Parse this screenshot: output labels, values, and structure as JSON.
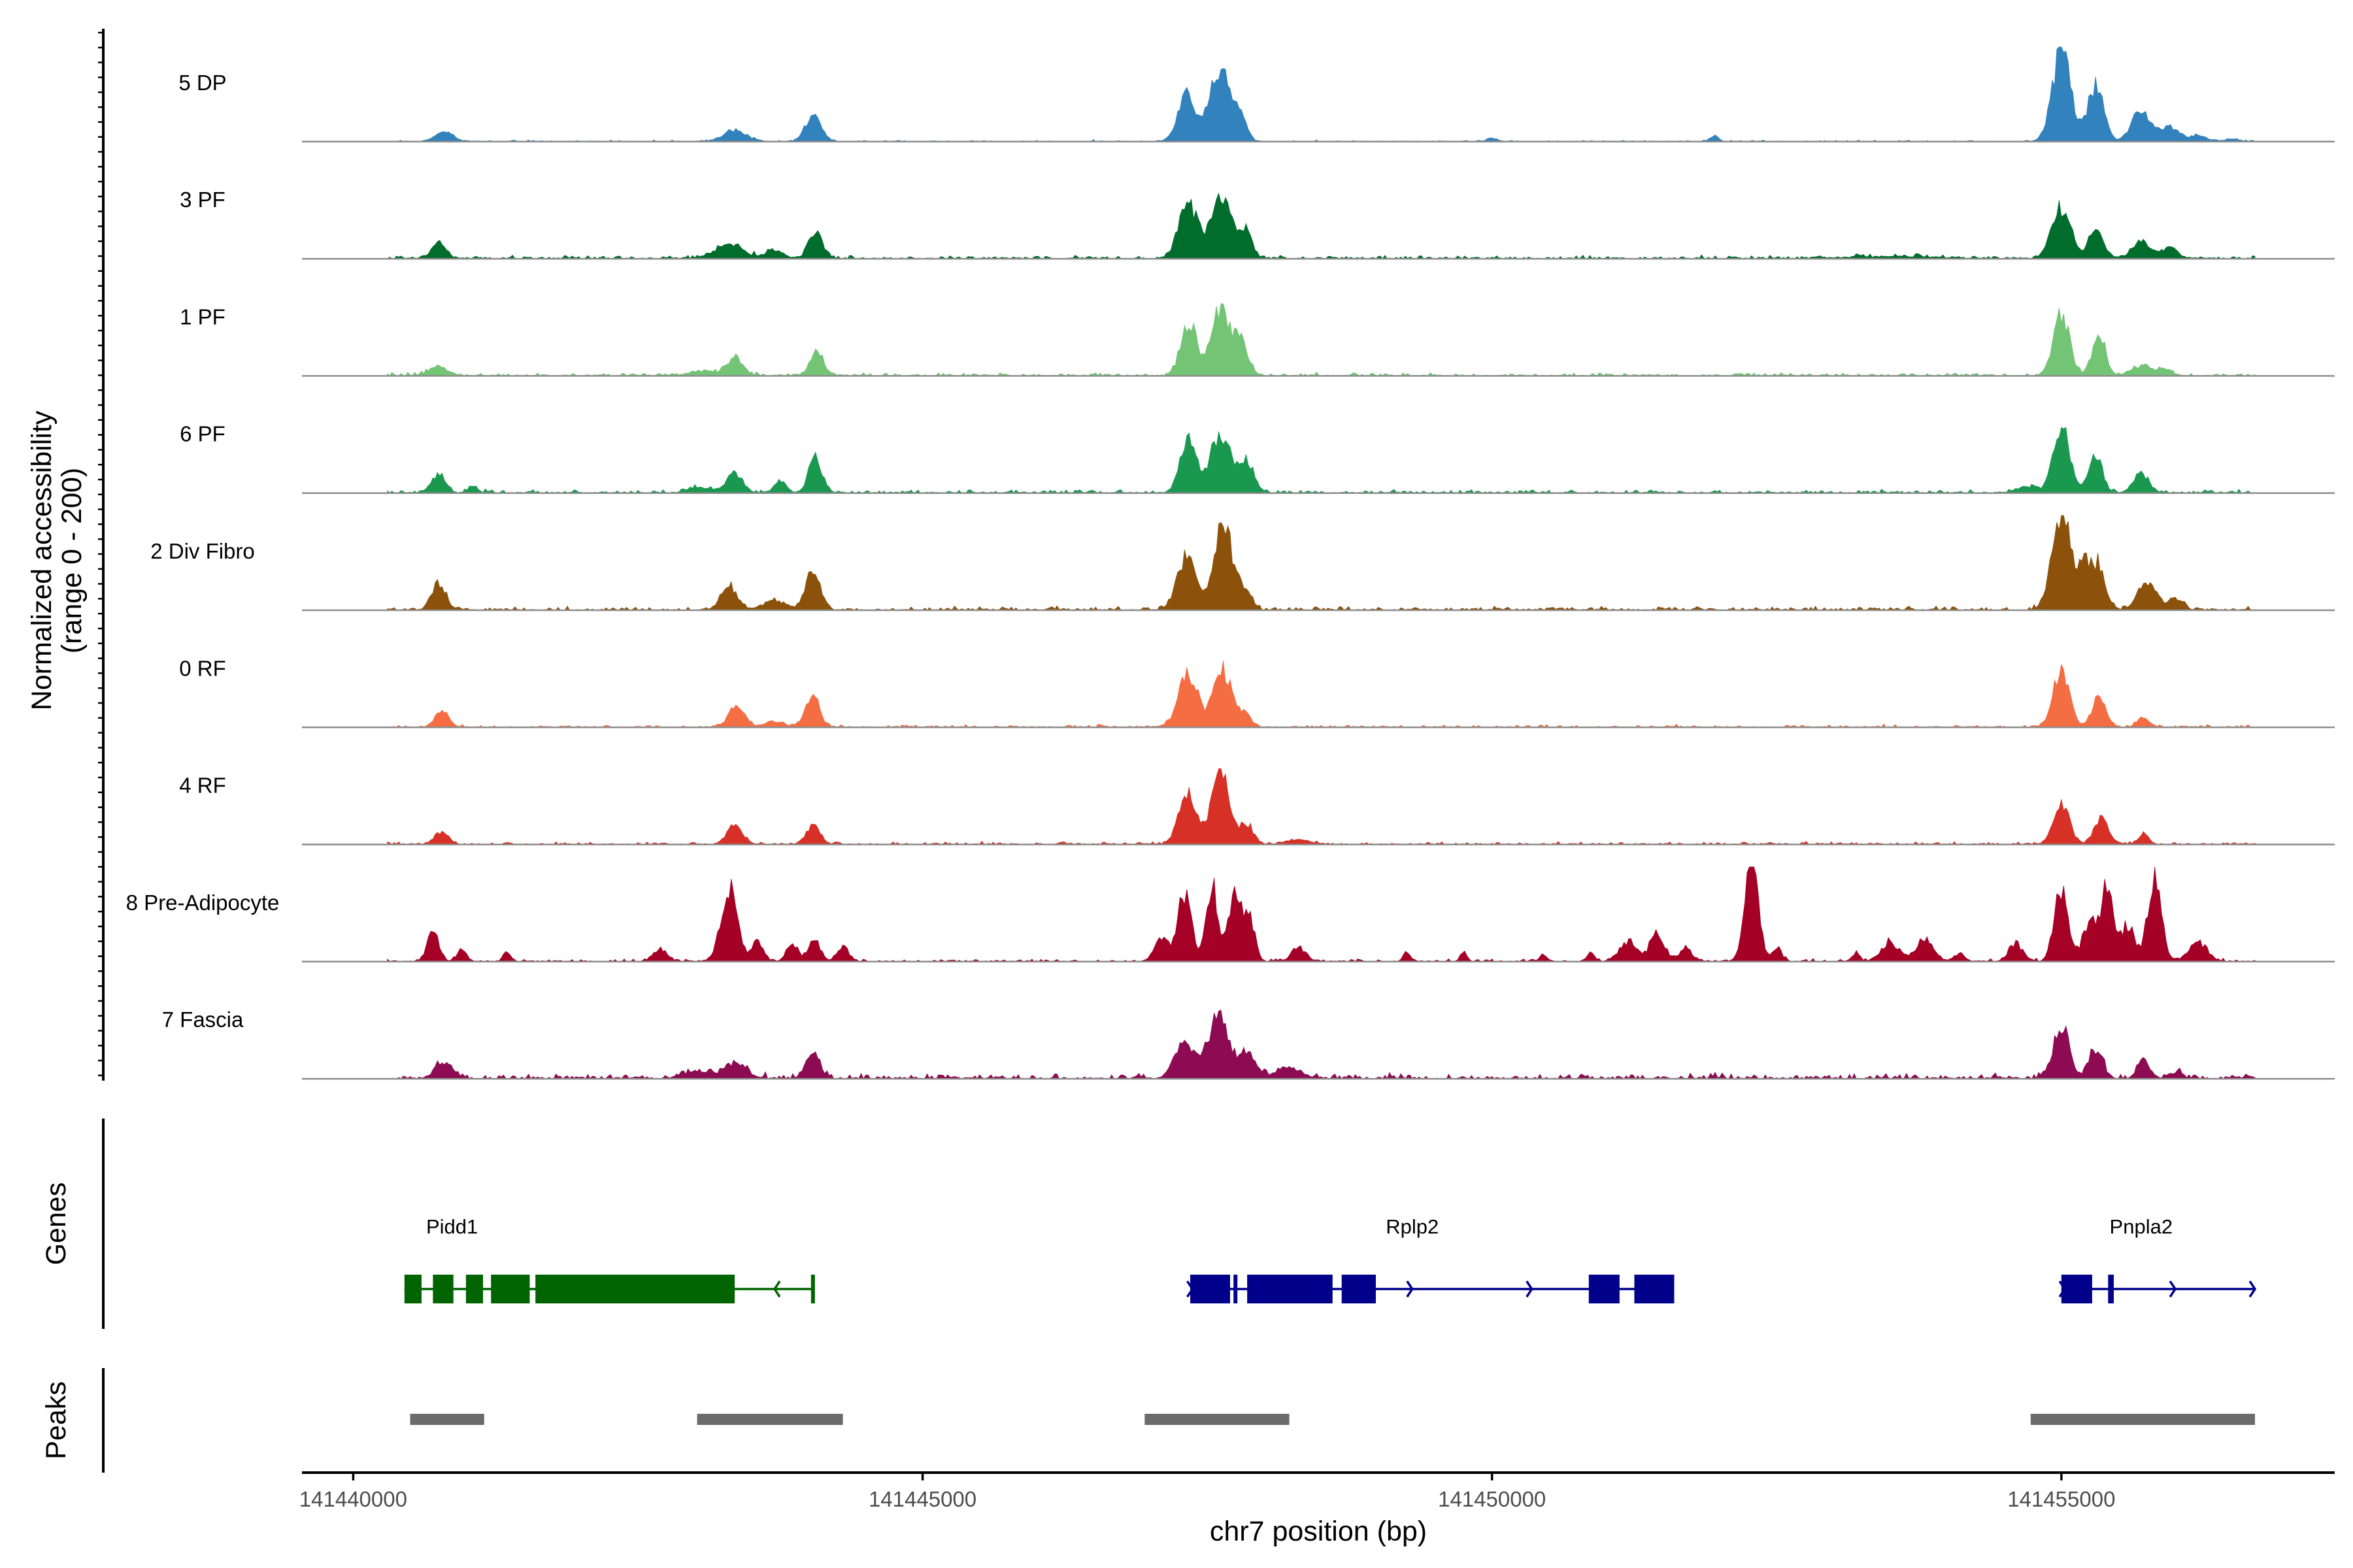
{
  "chart_data": {
    "type": "area",
    "title": "",
    "xlabel": "chr7 position (bp)",
    "ylabel_lines": [
      "Normalized accessibility",
      "(range 0 - 200)"
    ],
    "ylim": [
      0,
      200
    ],
    "xlim": [
      141439550,
      141457400
    ],
    "x_ticks": [
      {
        "value": 141440000,
        "label": "141440000"
      },
      {
        "value": 141445000,
        "label": "141445000"
      },
      {
        "value": 141450000,
        "label": "141450000"
      },
      {
        "value": 141455000,
        "label": "141455000"
      }
    ],
    "panels": {
      "genes": "Genes",
      "peaks": "Peaks"
    },
    "series": [
      {
        "name": "5 DP",
        "color": "#3182bd",
        "peaks": [
          [
            141440800,
            0.1,
            80
          ],
          [
            141443350,
            0.12,
            100
          ],
          [
            141444040,
            0.26,
            70
          ],
          [
            141447320,
            0.48,
            80
          ],
          [
            141447610,
            0.74,
            90
          ],
          [
            141447780,
            0.28,
            60
          ],
          [
            141455000,
            0.95,
            80
          ],
          [
            141455300,
            0.58,
            70
          ],
          [
            141455700,
            0.35,
            80
          ],
          [
            141455950,
            0.15,
            80
          ],
          [
            141450000,
            0.03,
            50
          ],
          [
            141451950,
            0.06,
            40
          ],
          [
            141456200,
            0.06,
            80
          ],
          [
            141456500,
            0.03,
            60
          ]
        ]
      },
      {
        "name": "3 PF",
        "color": "#006d2c",
        "peaks": [
          [
            141440750,
            0.17,
            60
          ],
          [
            141443300,
            0.15,
            120
          ],
          [
            141443700,
            0.08,
            80
          ],
          [
            141444060,
            0.29,
            60
          ],
          [
            141447330,
            0.59,
            80
          ],
          [
            141447620,
            0.66,
            90
          ],
          [
            141447830,
            0.28,
            60
          ],
          [
            141455000,
            0.54,
            80
          ],
          [
            141455300,
            0.26,
            70
          ],
          [
            141455700,
            0.18,
            80
          ],
          [
            141455950,
            0.12,
            70
          ],
          [
            141453500,
            0.02,
            400
          ]
        ],
        "noise_base": 0.025
      },
      {
        "name": "1 PF",
        "color": "#74c476",
        "peaks": [
          [
            141440750,
            0.11,
            70
          ],
          [
            141443350,
            0.19,
            70
          ],
          [
            141443050,
            0.05,
            100
          ],
          [
            141444070,
            0.26,
            60
          ],
          [
            141447340,
            0.57,
            70
          ],
          [
            141447620,
            0.72,
            80
          ],
          [
            141447800,
            0.33,
            60
          ],
          [
            141455000,
            0.63,
            70
          ],
          [
            141455330,
            0.42,
            60
          ],
          [
            141455700,
            0.1,
            80
          ],
          [
            141455900,
            0.06,
            60
          ]
        ],
        "noise_base": 0.025
      },
      {
        "name": "6 PF",
        "color": "#1a9850",
        "peaks": [
          [
            141440750,
            0.19,
            60
          ],
          [
            141441050,
            0.06,
            40
          ],
          [
            141443350,
            0.2,
            70
          ],
          [
            141443050,
            0.06,
            100
          ],
          [
            141443750,
            0.13,
            50
          ],
          [
            141444060,
            0.36,
            60
          ],
          [
            141447330,
            0.56,
            70
          ],
          [
            141447620,
            0.63,
            90
          ],
          [
            141447850,
            0.3,
            60
          ],
          [
            141455000,
            0.73,
            70
          ],
          [
            141455300,
            0.4,
            60
          ],
          [
            141455700,
            0.2,
            70
          ],
          [
            141454700,
            0.06,
            100
          ]
        ],
        "noise_base": 0.025
      },
      {
        "name": "2 Div Fibro",
        "color": "#8c510a",
        "peaks": [
          [
            141440750,
            0.26,
            60
          ],
          [
            141443300,
            0.25,
            70
          ],
          [
            141443700,
            0.1,
            100
          ],
          [
            141444040,
            0.43,
            60
          ],
          [
            141447320,
            0.58,
            80
          ],
          [
            141447640,
            0.88,
            80
          ],
          [
            141447830,
            0.2,
            60
          ],
          [
            141455000,
            1.0,
            80
          ],
          [
            141455200,
            0.44,
            60
          ],
          [
            141455330,
            0.45,
            60
          ],
          [
            141455750,
            0.29,
            80
          ],
          [
            141456000,
            0.12,
            60
          ]
        ],
        "noise_base": 0.03
      },
      {
        "name": "0 RF",
        "color": "#f46d43",
        "peaks": [
          [
            141440780,
            0.17,
            60
          ],
          [
            141443370,
            0.22,
            70
          ],
          [
            141443700,
            0.06,
            80
          ],
          [
            141444030,
            0.35,
            60
          ],
          [
            141447330,
            0.58,
            80
          ],
          [
            141447630,
            0.6,
            80
          ],
          [
            141447830,
            0.12,
            60
          ],
          [
            141455000,
            0.62,
            70
          ],
          [
            141455330,
            0.33,
            60
          ],
          [
            141455720,
            0.1,
            50
          ]
        ],
        "noise_base": 0.02
      },
      {
        "name": "4 RF",
        "color": "#d73027",
        "peaks": [
          [
            141440770,
            0.12,
            60
          ],
          [
            141443350,
            0.19,
            70
          ],
          [
            141444040,
            0.19,
            60
          ],
          [
            141447330,
            0.52,
            80
          ],
          [
            141447620,
            0.72,
            80
          ],
          [
            141447850,
            0.2,
            60
          ],
          [
            141448300,
            0.05,
            100
          ],
          [
            141455000,
            0.42,
            70
          ],
          [
            141455350,
            0.28,
            60
          ],
          [
            141455720,
            0.09,
            50
          ]
        ],
        "noise_base": 0.02
      },
      {
        "name": "8 Pre-Adipocyte",
        "color": "#a50026",
        "peaks": [
          [
            141440700,
            0.32,
            50
          ],
          [
            141440950,
            0.12,
            40
          ],
          [
            141441350,
            0.1,
            30
          ],
          [
            141442700,
            0.12,
            60
          ],
          [
            141443300,
            0.77,
            70
          ],
          [
            141443550,
            0.22,
            50
          ],
          [
            141443850,
            0.18,
            50
          ],
          [
            141444050,
            0.25,
            50
          ],
          [
            141444300,
            0.15,
            50
          ],
          [
            141447100,
            0.25,
            60
          ],
          [
            141447300,
            0.72,
            60
          ],
          [
            141447540,
            0.82,
            50
          ],
          [
            141447750,
            0.75,
            60
          ],
          [
            141447880,
            0.42,
            40
          ],
          [
            141448300,
            0.15,
            60
          ],
          [
            141449250,
            0.1,
            30
          ],
          [
            141449750,
            0.1,
            30
          ],
          [
            141450450,
            0.08,
            30
          ],
          [
            141450870,
            0.1,
            30
          ],
          [
            141451200,
            0.2,
            80
          ],
          [
            141451450,
            0.3,
            60
          ],
          [
            141451700,
            0.16,
            50
          ],
          [
            141452280,
            1.0,
            60
          ],
          [
            141452500,
            0.15,
            40
          ],
          [
            141453200,
            0.1,
            30
          ],
          [
            141453500,
            0.2,
            80
          ],
          [
            141453800,
            0.25,
            70
          ],
          [
            141454100,
            0.08,
            40
          ],
          [
            141454600,
            0.18,
            60
          ],
          [
            141455000,
            0.78,
            60
          ],
          [
            141455250,
            0.42,
            60
          ],
          [
            141455400,
            0.83,
            50
          ],
          [
            141455580,
            0.38,
            60
          ],
          [
            141455820,
            0.93,
            60
          ],
          [
            141456200,
            0.2,
            80
          ]
        ],
        "noise_base": 0.02
      },
      {
        "name": "7 Fascia",
        "color": "#8c0b52",
        "peaks": [
          [
            141440800,
            0.16,
            80
          ],
          [
            141443350,
            0.16,
            100
          ],
          [
            141443000,
            0.08,
            100
          ],
          [
            141444040,
            0.26,
            60
          ],
          [
            141447300,
            0.4,
            80
          ],
          [
            141447600,
            0.65,
            90
          ],
          [
            141447850,
            0.27,
            70
          ],
          [
            141448200,
            0.12,
            100
          ],
          [
            141455000,
            0.53,
            70
          ],
          [
            141455300,
            0.3,
            60
          ],
          [
            141455720,
            0.22,
            50
          ],
          [
            141456000,
            0.06,
            60
          ]
        ],
        "noise_base": 0.04
      }
    ],
    "genes": [
      {
        "name": "Pidd1",
        "strand": "-",
        "color": "#006400",
        "span": [
          141440450,
          141444050
        ],
        "exons": [
          [
            141440450,
            141440600
          ],
          [
            141440700,
            141440880
          ],
          [
            141440990,
            141441140
          ],
          [
            141441210,
            141441550
          ],
          [
            141441600,
            141443350
          ],
          [
            141444020,
            141444050
          ]
        ]
      },
      {
        "name": "Rplp2",
        "strand": "+",
        "color": "#00008b",
        "span": [
          141447350,
          141451600
        ],
        "exons": [
          [
            141447350,
            141447700
          ],
          [
            141447730,
            141447760
          ],
          [
            141447850,
            141448600
          ],
          [
            141448680,
            141448980
          ],
          [
            141450850,
            141451120
          ],
          [
            141451250,
            141451600
          ]
        ]
      },
      {
        "name": "Pnpla2",
        "strand": "+",
        "color": "#00008b",
        "span": [
          141455000,
          141456700
        ],
        "exons": [
          [
            141455000,
            141455270
          ],
          [
            141455410,
            141455460
          ]
        ]
      }
    ],
    "peak_regions": [
      [
        141440500,
        141441150
      ],
      [
        141443020,
        141444300
      ],
      [
        141446950,
        141448220
      ],
      [
        141454730,
        141456700
      ]
    ]
  }
}
